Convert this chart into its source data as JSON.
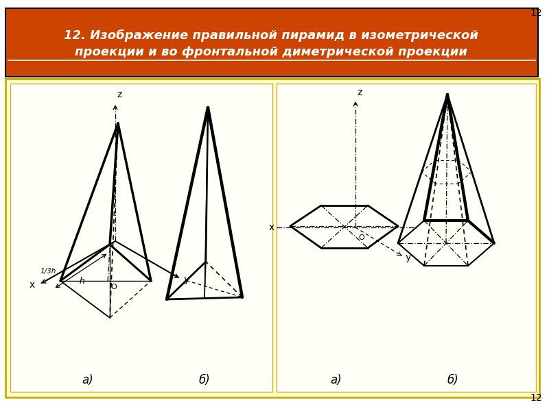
{
  "header_bg": "#cc4400",
  "slide_bg": "#ffffcc",
  "panel_bg": "#fffff8",
  "page_number": "12",
  "title_line1": "12. Изображение правильной пирамид в изометрической",
  "title_line2": "проекции и во фронтальной диметрической проекции",
  "label_a": "а)",
  "label_b": "б)"
}
